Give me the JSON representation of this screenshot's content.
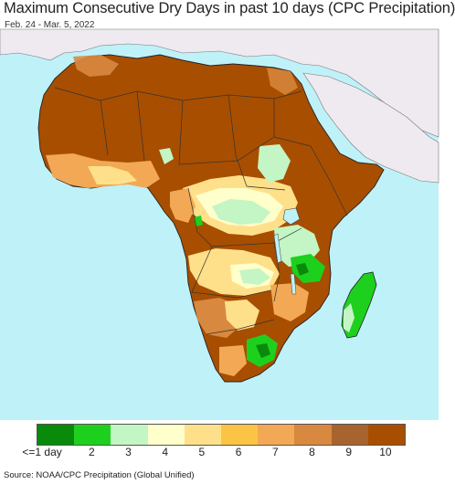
{
  "header": {
    "title": "Maximum Consecutive Dry Days in past 10 days (CPC Precipitation)",
    "subtitle": "Feb. 24 - Mar. 5, 2022"
  },
  "map": {
    "region": "Africa",
    "ocean_color": "#bff1f8",
    "non_data_land_color": "#efeaf0"
  },
  "legend": {
    "items": [
      {
        "label": "<=1 day",
        "color": "#0a8a0a"
      },
      {
        "label": "2",
        "color": "#1ed01e"
      },
      {
        "label": "3",
        "color": "#c4f5c4"
      },
      {
        "label": "4",
        "color": "#ffffcc"
      },
      {
        "label": "5",
        "color": "#ffe08a"
      },
      {
        "label": "6",
        "color": "#fcc444"
      },
      {
        "label": "7",
        "color": "#f2a855"
      },
      {
        "label": "8",
        "color": "#d98840"
      },
      {
        "label": "9",
        "color": "#a8642e"
      },
      {
        "label": "10",
        "color": "#a84e00"
      }
    ]
  },
  "footer": {
    "source": "Source: NOAA/CPC Precipitation (Global Unified)"
  }
}
